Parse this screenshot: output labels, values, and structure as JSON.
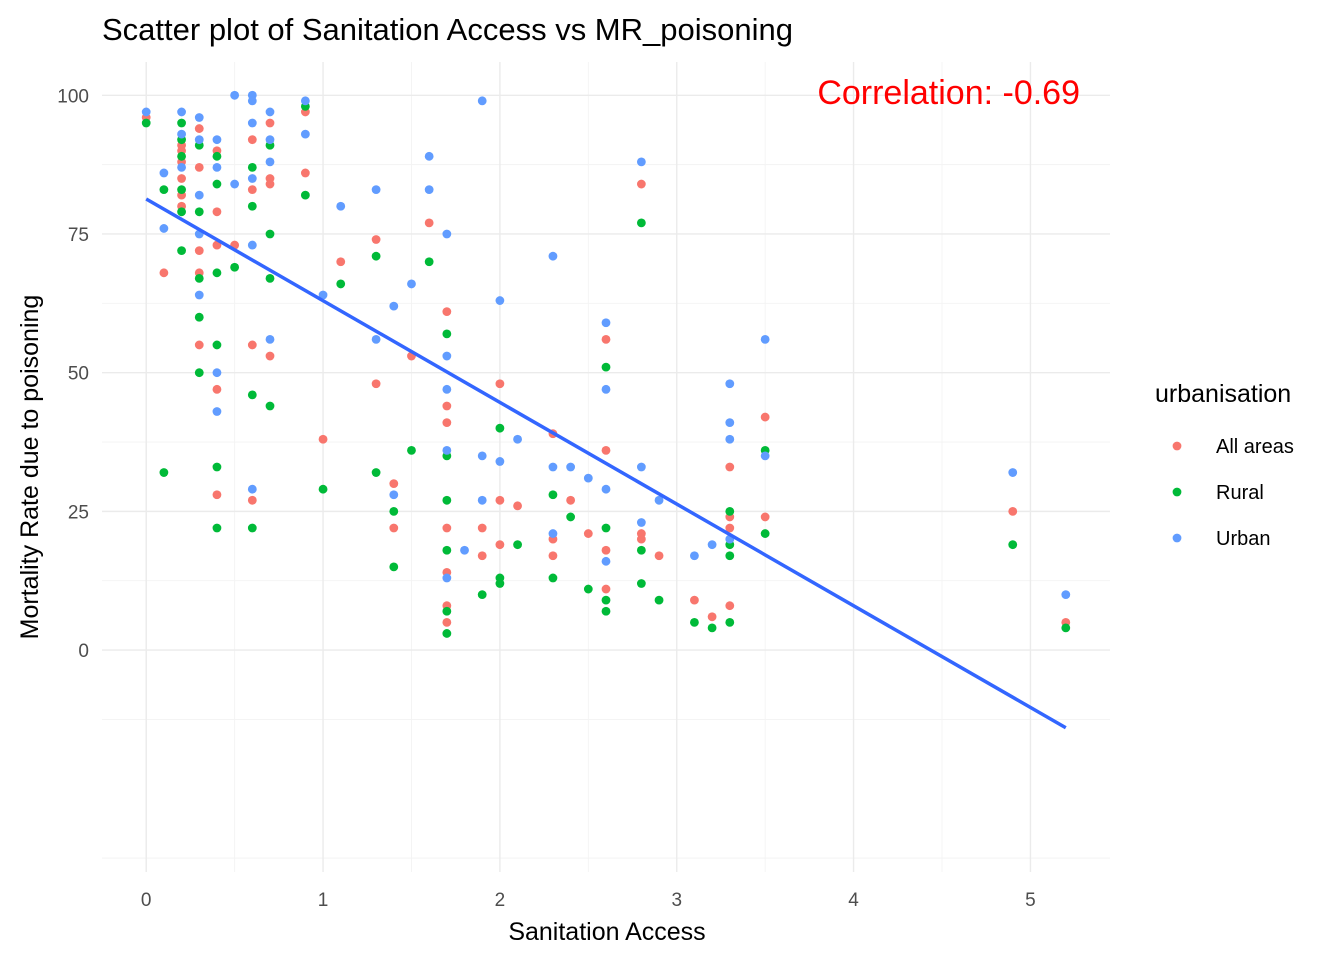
{
  "chart_data": {
    "type": "scatter",
    "title": "Scatter plot of Sanitation Access vs MR_poisoning",
    "xlabel": "Sanitation Access",
    "ylabel": "Mortality Rate due to poisoning",
    "xlim": [
      -0.25,
      5.45
    ],
    "ylim": [
      -40,
      106
    ],
    "x_ticks": [
      0,
      1,
      2,
      3,
      4,
      5
    ],
    "y_ticks": [
      0,
      25,
      50,
      75,
      100
    ],
    "grid": true,
    "annotation": "Correlation:  -0.69",
    "annotation_color": "#ff0000",
    "legend": {
      "title": "urbanisation",
      "placement": "right",
      "entries": [
        "All areas",
        "Rural",
        "Urban"
      ]
    },
    "series": [
      {
        "name": "All areas",
        "color": "#f8766d",
        "points": [
          [
            0,
            96
          ],
          [
            0.1,
            68
          ],
          [
            0.2,
            91
          ],
          [
            0.2,
            90
          ],
          [
            0.2,
            88
          ],
          [
            0.2,
            85
          ],
          [
            0.2,
            82
          ],
          [
            0.2,
            80
          ],
          [
            0.3,
            94
          ],
          [
            0.3,
            87
          ],
          [
            0.3,
            72
          ],
          [
            0.3,
            68
          ],
          [
            0.3,
            55
          ],
          [
            0.4,
            90
          ],
          [
            0.4,
            79
          ],
          [
            0.4,
            73
          ],
          [
            0.4,
            47
          ],
          [
            0.4,
            28
          ],
          [
            0.5,
            73
          ],
          [
            0.6,
            92
          ],
          [
            0.6,
            83
          ],
          [
            0.6,
            55
          ],
          [
            0.6,
            27
          ],
          [
            0.7,
            95
          ],
          [
            0.7,
            85
          ],
          [
            0.7,
            84
          ],
          [
            0.7,
            53
          ],
          [
            0.9,
            97
          ],
          [
            0.9,
            86
          ],
          [
            1.0,
            38
          ],
          [
            1.1,
            70
          ],
          [
            1.3,
            74
          ],
          [
            1.3,
            48
          ],
          [
            1.4,
            30
          ],
          [
            1.4,
            22
          ],
          [
            1.5,
            53
          ],
          [
            1.6,
            77
          ],
          [
            1.7,
            61
          ],
          [
            1.7,
            44
          ],
          [
            1.7,
            41
          ],
          [
            1.7,
            22
          ],
          [
            1.7,
            14
          ],
          [
            1.7,
            8
          ],
          [
            1.7,
            5
          ],
          [
            1.9,
            22
          ],
          [
            1.9,
            17
          ],
          [
            2.0,
            48
          ],
          [
            2.0,
            27
          ],
          [
            2.0,
            19
          ],
          [
            2.1,
            26
          ],
          [
            2.3,
            39
          ],
          [
            2.3,
            20
          ],
          [
            2.3,
            17
          ],
          [
            2.4,
            27
          ],
          [
            2.5,
            21
          ],
          [
            2.6,
            56
          ],
          [
            2.6,
            36
          ],
          [
            2.6,
            18
          ],
          [
            2.6,
            11
          ],
          [
            2.8,
            84
          ],
          [
            2.8,
            21
          ],
          [
            2.8,
            20
          ],
          [
            2.9,
            17
          ],
          [
            3.1,
            9
          ],
          [
            3.2,
            6
          ],
          [
            3.3,
            33
          ],
          [
            3.3,
            24
          ],
          [
            3.3,
            22
          ],
          [
            3.3,
            8
          ],
          [
            3.5,
            42
          ],
          [
            3.5,
            24
          ],
          [
            4.9,
            25
          ],
          [
            5.2,
            5
          ]
        ]
      },
      {
        "name": "Rural",
        "color": "#00ba38",
        "points": [
          [
            0,
            95
          ],
          [
            0.1,
            83
          ],
          [
            0.1,
            32
          ],
          [
            0.2,
            95
          ],
          [
            0.2,
            92
          ],
          [
            0.2,
            89
          ],
          [
            0.2,
            83
          ],
          [
            0.2,
            79
          ],
          [
            0.2,
            72
          ],
          [
            0.3,
            91
          ],
          [
            0.3,
            79
          ],
          [
            0.3,
            67
          ],
          [
            0.3,
            60
          ],
          [
            0.3,
            50
          ],
          [
            0.4,
            89
          ],
          [
            0.4,
            84
          ],
          [
            0.4,
            68
          ],
          [
            0.4,
            55
          ],
          [
            0.4,
            33
          ],
          [
            0.4,
            22
          ],
          [
            0.5,
            69
          ],
          [
            0.6,
            87
          ],
          [
            0.6,
            80
          ],
          [
            0.6,
            46
          ],
          [
            0.6,
            22
          ],
          [
            0.7,
            91
          ],
          [
            0.7,
            75
          ],
          [
            0.7,
            67
          ],
          [
            0.7,
            44
          ],
          [
            0.9,
            98
          ],
          [
            0.9,
            82
          ],
          [
            1.0,
            29
          ],
          [
            1.1,
            66
          ],
          [
            1.3,
            71
          ],
          [
            1.3,
            32
          ],
          [
            1.4,
            25
          ],
          [
            1.4,
            15
          ],
          [
            1.5,
            36
          ],
          [
            1.6,
            70
          ],
          [
            1.7,
            57
          ],
          [
            1.7,
            35
          ],
          [
            1.7,
            27
          ],
          [
            1.7,
            18
          ],
          [
            1.7,
            7
          ],
          [
            1.7,
            3
          ],
          [
            1.9,
            10
          ],
          [
            2.0,
            40
          ],
          [
            2.0,
            13
          ],
          [
            2.0,
            12
          ],
          [
            2.1,
            19
          ],
          [
            2.3,
            28
          ],
          [
            2.3,
            13
          ],
          [
            2.4,
            24
          ],
          [
            2.5,
            11
          ],
          [
            2.6,
            51
          ],
          [
            2.6,
            22
          ],
          [
            2.6,
            9
          ],
          [
            2.6,
            7
          ],
          [
            2.8,
            77
          ],
          [
            2.8,
            18
          ],
          [
            2.8,
            12
          ],
          [
            2.9,
            9
          ],
          [
            3.1,
            5
          ],
          [
            3.2,
            4
          ],
          [
            3.3,
            25
          ],
          [
            3.3,
            19
          ],
          [
            3.3,
            17
          ],
          [
            3.3,
            5
          ],
          [
            3.5,
            36
          ],
          [
            3.5,
            21
          ],
          [
            4.9,
            19
          ],
          [
            5.2,
            4
          ]
        ]
      },
      {
        "name": "Urban",
        "color": "#619cff",
        "points": [
          [
            0,
            97
          ],
          [
            0.1,
            86
          ],
          [
            0.1,
            76
          ],
          [
            0.2,
            97
          ],
          [
            0.2,
            93
          ],
          [
            0.2,
            87
          ],
          [
            0.3,
            96
          ],
          [
            0.3,
            92
          ],
          [
            0.3,
            82
          ],
          [
            0.3,
            75
          ],
          [
            0.3,
            64
          ],
          [
            0.4,
            92
          ],
          [
            0.4,
            87
          ],
          [
            0.4,
            50
          ],
          [
            0.4,
            43
          ],
          [
            0.5,
            100
          ],
          [
            0.5,
            84
          ],
          [
            0.6,
            100
          ],
          [
            0.6,
            99
          ],
          [
            0.6,
            95
          ],
          [
            0.6,
            85
          ],
          [
            0.6,
            73
          ],
          [
            0.6,
            29
          ],
          [
            0.7,
            97
          ],
          [
            0.7,
            92
          ],
          [
            0.7,
            88
          ],
          [
            0.7,
            56
          ],
          [
            0.9,
            99
          ],
          [
            0.9,
            93
          ],
          [
            1.0,
            64
          ],
          [
            1.1,
            80
          ],
          [
            1.3,
            83
          ],
          [
            1.3,
            56
          ],
          [
            1.4,
            62
          ],
          [
            1.4,
            28
          ],
          [
            1.5,
            66
          ],
          [
            1.6,
            89
          ],
          [
            1.6,
            83
          ],
          [
            1.7,
            75
          ],
          [
            1.7,
            53
          ],
          [
            1.7,
            47
          ],
          [
            1.7,
            36
          ],
          [
            1.7,
            13
          ],
          [
            1.8,
            18
          ],
          [
            1.9,
            99
          ],
          [
            1.9,
            35
          ],
          [
            1.9,
            27
          ],
          [
            2.0,
            63
          ],
          [
            2.0,
            34
          ],
          [
            2.1,
            38
          ],
          [
            2.3,
            71
          ],
          [
            2.3,
            33
          ],
          [
            2.3,
            21
          ],
          [
            2.4,
            33
          ],
          [
            2.5,
            31
          ],
          [
            2.6,
            59
          ],
          [
            2.6,
            47
          ],
          [
            2.6,
            29
          ],
          [
            2.6,
            16
          ],
          [
            2.8,
            88
          ],
          [
            2.8,
            33
          ],
          [
            2.8,
            23
          ],
          [
            2.9,
            27
          ],
          [
            3.1,
            17
          ],
          [
            3.2,
            19
          ],
          [
            3.3,
            48
          ],
          [
            3.3,
            41
          ],
          [
            3.3,
            38
          ],
          [
            3.3,
            20
          ],
          [
            3.5,
            56
          ],
          [
            3.5,
            35
          ],
          [
            4.9,
            32
          ],
          [
            5.2,
            10
          ]
        ]
      }
    ],
    "fit_line": {
      "color": "#3366ff",
      "points": [
        [
          0,
          81.3
        ],
        [
          5.2,
          -14
        ]
      ]
    }
  }
}
